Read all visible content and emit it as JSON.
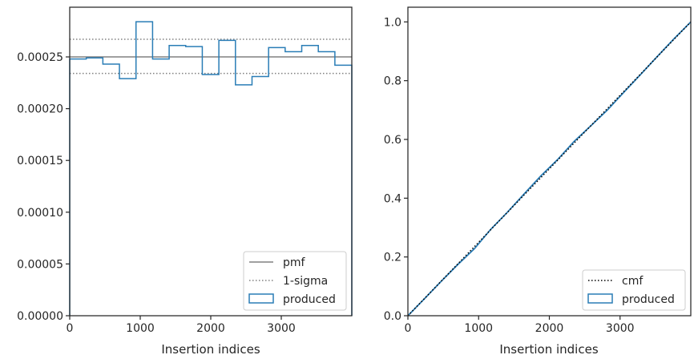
{
  "chart_data": [
    {
      "type": "line",
      "subtype": "step-histogram",
      "xlabel": "Insertion indices",
      "ylabel": "",
      "xlim": [
        0,
        4000
      ],
      "ylim": [
        0,
        0.000298
      ],
      "xticks": [
        "0",
        "1000",
        "2000",
        "3000"
      ],
      "yticks": [
        "0.00000",
        "0.00005",
        "0.00010",
        "0.00015",
        "0.00020",
        "0.00025"
      ],
      "grid": false,
      "legend_position": "lower-right",
      "pmf": 0.00025,
      "sigma_band": [
        0.000234,
        0.000267
      ],
      "bin_edges": [
        0,
        235,
        470,
        705,
        940,
        1175,
        1410,
        1645,
        1880,
        2115,
        2350,
        2585,
        2820,
        3055,
        3290,
        3525,
        3760,
        4000
      ],
      "series": [
        {
          "name": "produced",
          "color": "#2a7db6",
          "values": [
            0.000248,
            0.000249,
            0.000243,
            0.000229,
            0.000284,
            0.000248,
            0.000261,
            0.00026,
            0.000233,
            0.000266,
            0.000223,
            0.000231,
            0.000259,
            0.000255,
            0.000261,
            0.000255,
            0.000242
          ]
        }
      ],
      "legend": [
        {
          "label": "pmf",
          "style": "solid",
          "color": "#808080"
        },
        {
          "label": "1-sigma",
          "style": "dotted",
          "color": "#808080"
        },
        {
          "label": "produced",
          "style": "box",
          "color": "#2a7db6"
        }
      ]
    },
    {
      "type": "line",
      "xlabel": "Insertion indices",
      "ylabel": "",
      "xlim": [
        0,
        4000
      ],
      "ylim": [
        0,
        1.05
      ],
      "xticks": [
        "0",
        "1000",
        "2000",
        "3000"
      ],
      "yticks": [
        "0.0",
        "0.2",
        "0.4",
        "0.6",
        "0.8",
        "1.0"
      ],
      "grid": false,
      "legend_position": "lower-right",
      "series": [
        {
          "name": "cmf",
          "style": "dotted",
          "color": "#000000",
          "x": [
            0,
            4000
          ],
          "y": [
            0,
            1.0
          ]
        },
        {
          "name": "produced",
          "color": "#2a7db6",
          "x": [
            0,
            235,
            470,
            705,
            940,
            1175,
            1410,
            1645,
            1880,
            2115,
            2350,
            2585,
            2820,
            3055,
            3290,
            3525,
            3760,
            4000
          ],
          "y": [
            0,
            0.058,
            0.117,
            0.174,
            0.228,
            0.295,
            0.353,
            0.415,
            0.476,
            0.531,
            0.593,
            0.646,
            0.7,
            0.761,
            0.821,
            0.882,
            0.942,
            1.0
          ]
        }
      ],
      "legend": [
        {
          "label": "cmf",
          "style": "dotted",
          "color": "#000000"
        },
        {
          "label": "produced",
          "style": "box",
          "color": "#2a7db6"
        }
      ]
    }
  ]
}
